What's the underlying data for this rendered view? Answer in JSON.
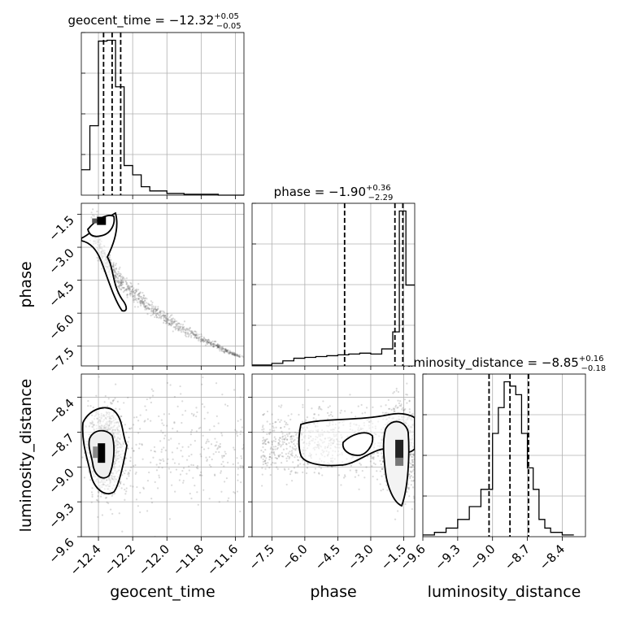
{
  "chart_data": {
    "type": "corner",
    "parameters": [
      "geocent_time",
      "phase",
      "luminosity_distance"
    ],
    "grid": true,
    "titles": [
      {
        "param": "geocent_time",
        "prefix": "geocent_time = ",
        "median": "−12.32",
        "plus": "+0.05",
        "minus": "−0.05"
      },
      {
        "param": "phase",
        "prefix": "phase = ",
        "median": "−1.90",
        "plus": "+0.36",
        "minus": "−2.29"
      },
      {
        "param": "luminosity_distance",
        "prefix": "luminosity_distance = ",
        "median": "−8.85",
        "plus": "+0.16",
        "minus": "−0.18"
      }
    ],
    "axes": {
      "geocent_time": {
        "range": [
          -12.5,
          -11.55
        ],
        "ticks": [
          -12.4,
          -12.2,
          -12.0,
          -11.8,
          -11.6
        ],
        "tick_labels": [
          "−12.4",
          "−12.2",
          "−12.0",
          "−11.8",
          "−11.6"
        ]
      },
      "phase": {
        "range": [
          -8.4,
          -1.0
        ],
        "ticks": [
          -7.5,
          -6.0,
          -4.5,
          -3.0,
          -1.5
        ],
        "tick_labels": [
          "−7.5",
          "−6.0",
          "−4.5",
          "−3.0",
          "−1.5"
        ]
      },
      "luminosity_distance": {
        "range": [
          -9.6,
          -8.2
        ],
        "ticks": [
          -9.6,
          -9.3,
          -9.0,
          -8.7,
          -8.4
        ],
        "tick_labels": [
          "−9.6",
          "−9.3",
          "−9.0",
          "−8.7",
          "−8.4"
        ]
      }
    },
    "histograms": {
      "geocent_time": {
        "edges": [
          -12.5,
          -12.45,
          -12.4,
          -12.35,
          -12.3,
          -12.25,
          -12.2,
          -12.15,
          -12.1,
          -12.0,
          -11.9,
          -11.7,
          -11.55
        ],
        "counts": [
          30,
          82,
          182,
          183,
          128,
          35,
          24,
          10,
          5,
          2,
          1,
          0
        ],
        "quantiles": [
          -12.37,
          -12.32,
          -12.27
        ]
      },
      "phase": {
        "edges": [
          -8.4,
          -7.5,
          -7.0,
          -6.5,
          -6.0,
          -5.5,
          -5.0,
          -4.5,
          -4.0,
          -3.5,
          -3.0,
          -2.5,
          -2.0,
          -1.7,
          -1.4,
          -1.0
        ],
        "counts": [
          1,
          3,
          6,
          9,
          10,
          11,
          12,
          13,
          14,
          15,
          14,
          20,
          40,
          182,
          95
        ],
        "quantiles": [
          -4.19,
          -1.9,
          -1.54
        ]
      },
      "luminosity_distance": {
        "edges": [
          -9.6,
          -9.5,
          -9.4,
          -9.3,
          -9.2,
          -9.1,
          -9.0,
          -8.95,
          -8.9,
          -8.85,
          -8.8,
          -8.75,
          -8.7,
          -8.65,
          -8.6,
          -8.55,
          -8.5,
          -8.4,
          -8.3
        ],
        "counts": [
          2,
          5,
          10,
          20,
          35,
          55,
          120,
          150,
          180,
          175,
          165,
          120,
          80,
          55,
          20,
          10,
          5,
          2
        ],
        "quantiles": [
          -9.03,
          -8.85,
          -8.69
        ]
      }
    },
    "contour_panels": [
      {
        "x": "geocent_time",
        "y": "phase",
        "peak": [
          -12.38,
          -1.8
        ]
      },
      {
        "x": "geocent_time",
        "y": "luminosity_distance",
        "peak": [
          -12.38,
          -8.88
        ]
      },
      {
        "x": "phase",
        "y": "luminosity_distance",
        "peak": [
          -1.7,
          -8.85
        ]
      }
    ]
  }
}
